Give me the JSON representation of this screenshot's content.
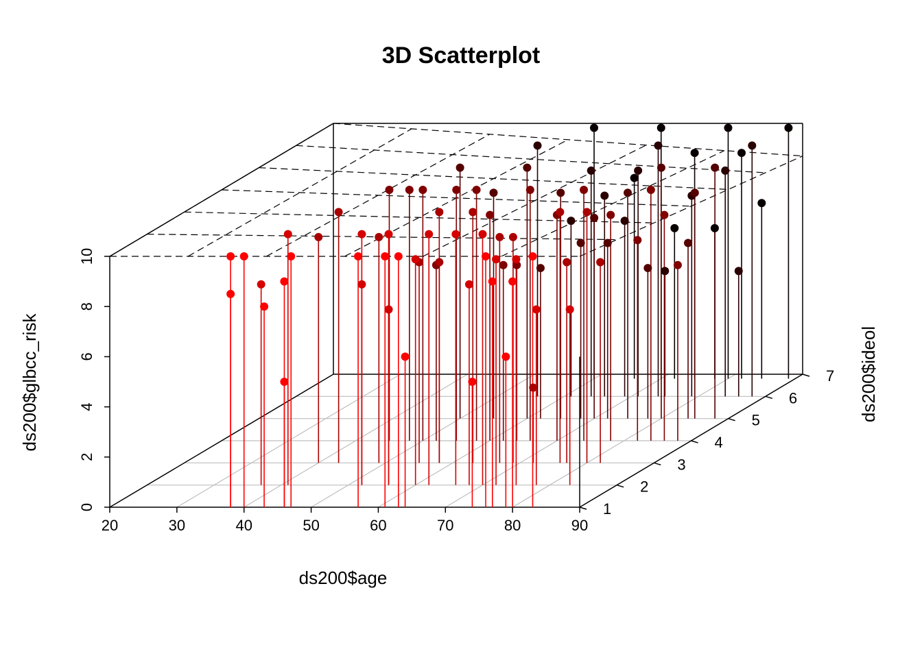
{
  "chart_data": {
    "type": "scatter",
    "subtype": "3d-scatter-with-drop-lines-and-regression-plane",
    "title": "3D Scatterplot",
    "xlabel": "ds200$age",
    "ylabel": "ds200$ideol",
    "zlabel": "ds200$glbcc_risk",
    "xlim": [
      20,
      90
    ],
    "ylim": [
      1,
      7
    ],
    "zlim": [
      0,
      10
    ],
    "x_ticks": [
      "20",
      "30",
      "40",
      "50",
      "60",
      "70",
      "80",
      "90"
    ],
    "y_ticks": [
      "1",
      "2",
      "3",
      "4",
      "5",
      "6",
      "7"
    ],
    "z_ticks": [
      "0",
      "2",
      "4",
      "6",
      "8",
      "10"
    ],
    "grid": true,
    "regression_plane": {
      "style": "dashed",
      "z_at": {
        "x20_y1": 10,
        "x90_y1": 10,
        "x90_y7": 8.7,
        "x20_y7": 10
      }
    },
    "colors": {
      "low": "#ff0000",
      "high": "#000000",
      "frame": "#000000",
      "grid": "#bebebe"
    },
    "points": [
      [
        38,
        1,
        8.5
      ],
      [
        38,
        1,
        10
      ],
      [
        40,
        1,
        10
      ],
      [
        43,
        1,
        8
      ],
      [
        46,
        1,
        5
      ],
      [
        46,
        1,
        9
      ],
      [
        47,
        1,
        10
      ],
      [
        57,
        1,
        10
      ],
      [
        61,
        1,
        10
      ],
      [
        64,
        1,
        6
      ],
      [
        63,
        1,
        10
      ],
      [
        74,
        1,
        5
      ],
      [
        76,
        1,
        10
      ],
      [
        77,
        1,
        9
      ],
      [
        80,
        1,
        9
      ],
      [
        83,
        1,
        10
      ],
      [
        79,
        1,
        6
      ],
      [
        37,
        2,
        8
      ],
      [
        41,
        2,
        10
      ],
      [
        52,
        2,
        8
      ],
      [
        56,
        2,
        7
      ],
      [
        60,
        2,
        9
      ],
      [
        62,
        2,
        10
      ],
      [
        68,
        2,
        8
      ],
      [
        72,
        2,
        9
      ],
      [
        75,
        2,
        9
      ],
      [
        78,
        2,
        7
      ],
      [
        83,
        2,
        7
      ],
      [
        70,
        2,
        10
      ],
      [
        66,
        2,
        10
      ],
      [
        52,
        2,
        10
      ],
      [
        56,
        2,
        10
      ],
      [
        40,
        3,
        9
      ],
      [
        43,
        3,
        10
      ],
      [
        49,
        3,
        9
      ],
      [
        55,
        3,
        8
      ],
      [
        58,
        3,
        8
      ],
      [
        63,
        3,
        10
      ],
      [
        69,
        3,
        9
      ],
      [
        72,
        3,
        3
      ],
      [
        77,
        3,
        8
      ],
      [
        80,
        3,
        10
      ],
      [
        82,
        3,
        8
      ],
      [
        76,
        3,
        10
      ],
      [
        67,
        3,
        9
      ],
      [
        58,
        3,
        10
      ],
      [
        45,
        4,
        10
      ],
      [
        48,
        4,
        10
      ],
      [
        52,
        4,
        7
      ],
      [
        58,
        4,
        10
      ],
      [
        62,
        4,
        7
      ],
      [
        66,
        4,
        10
      ],
      [
        70,
        4,
        9
      ],
      [
        74,
        4,
        10
      ],
      [
        78,
        4,
        9
      ],
      [
        82,
        4,
        8
      ],
      [
        86,
        4,
        9
      ],
      [
        88,
        4,
        7
      ],
      [
        84,
        4,
        10
      ],
      [
        64,
        4,
        7
      ],
      [
        60,
        4,
        9
      ],
      [
        55,
        4,
        10
      ],
      [
        50,
        4,
        10
      ],
      [
        50,
        5,
        10
      ],
      [
        55,
        5,
        9
      ],
      [
        60,
        5,
        10
      ],
      [
        65,
        5,
        9
      ],
      [
        70,
        5,
        8
      ],
      [
        75,
        5,
        9
      ],
      [
        80,
        5,
        10
      ],
      [
        85,
        5,
        9
      ],
      [
        88,
        5,
        10
      ],
      [
        72,
        5,
        7
      ],
      [
        68,
        5,
        7
      ],
      [
        62,
        5,
        6
      ],
      [
        78,
        5,
        6
      ],
      [
        84,
        5,
        7
      ],
      [
        56,
        6,
        10
      ],
      [
        61,
        6,
        7
      ],
      [
        66,
        6,
        8
      ],
      [
        71,
        6,
        9
      ],
      [
        75,
        6,
        5
      ],
      [
        79,
        6,
        8
      ],
      [
        84,
        6,
        9
      ],
      [
        88,
        6,
        10
      ],
      [
        86,
        6,
        5
      ],
      [
        74,
        6,
        10
      ],
      [
        69,
        6,
        7
      ],
      [
        64,
        6,
        9
      ],
      [
        60,
        6.8,
        10
      ],
      [
        66,
        6.8,
        8
      ],
      [
        70,
        6.8,
        10
      ],
      [
        75,
        6.8,
        9
      ],
      [
        80,
        6.8,
        10
      ],
      [
        85,
        6.8,
        7
      ],
      [
        89,
        6.8,
        10
      ],
      [
        72,
        6.8,
        6
      ],
      [
        78,
        6.8,
        6
      ],
      [
        82,
        6.8,
        9
      ]
    ]
  }
}
